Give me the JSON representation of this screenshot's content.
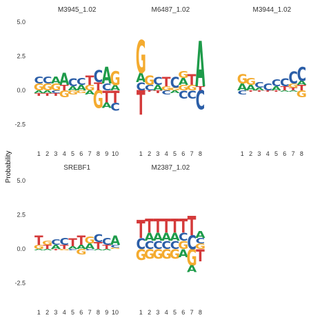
{
  "chart_data": {
    "type": "sequence-logo",
    "ylabel": "Probability",
    "colors": {
      "A": "#1e9b4a",
      "C": "#2b5ea7",
      "G": "#f4ab2f",
      "T": "#d43a3a"
    },
    "yticks": [
      -2.5,
      0.0,
      2.5,
      5.0
    ],
    "ylim": [
      -4.5,
      5.0
    ],
    "panels": [
      {
        "title": "M3945_1.02",
        "positions": [
          {
            "x": "1",
            "stack": [
              [
                "A",
                -0.2
              ],
              [
                "T",
                -0.2
              ],
              [
                "G",
                0.5
              ],
              [
                "C",
                0.5
              ]
            ]
          },
          {
            "x": "2",
            "stack": [
              [
                "A",
                -0.2
              ],
              [
                "T",
                -0.2
              ],
              [
                "G",
                0.5
              ],
              [
                "C",
                0.5
              ]
            ]
          },
          {
            "x": "3",
            "stack": [
              [
                "C",
                -0.2
              ],
              [
                "T",
                -0.2
              ],
              [
                "G",
                0.5
              ],
              [
                "A",
                0.5
              ]
            ]
          },
          {
            "x": "4",
            "stack": [
              [
                "G",
                -0.5
              ],
              [
                "T",
                0.4
              ],
              [
                "A",
                0.9
              ]
            ]
          },
          {
            "x": "5",
            "stack": [
              [
                "G",
                -0.3
              ],
              [
                "A",
                0.3
              ],
              [
                "C",
                0.6
              ]
            ]
          },
          {
            "x": "6",
            "stack": [
              [
                "G",
                -0.2
              ],
              [
                "A",
                0.4
              ],
              [
                "C",
                0.5
              ]
            ]
          },
          {
            "x": "7",
            "stack": [
              [
                "A",
                -0.3
              ],
              [
                "G",
                0.4
              ],
              [
                "T",
                0.7
              ]
            ]
          },
          {
            "x": "8",
            "stack": [
              [
                "G",
                -1.3
              ],
              [
                "T",
                0.6
              ],
              [
                "C",
                0.9
              ]
            ]
          },
          {
            "x": "9",
            "stack": [
              [
                "T",
                -0.9
              ],
              [
                "A",
                -0.4
              ],
              [
                "C",
                0.5
              ],
              [
                "A",
                1.2
              ]
            ]
          },
          {
            "x": "10",
            "stack": [
              [
                "T",
                -0.9
              ],
              [
                "C",
                -0.6
              ],
              [
                "A",
                0.4
              ],
              [
                "G",
                1.0
              ]
            ]
          }
        ]
      },
      {
        "title": "M6487_1.02",
        "positions": [
          {
            "x": "1",
            "stack": [
              [
                "T",
                -1.8
              ],
              [
                "C",
                0.6
              ],
              [
                "A",
                0.7
              ],
              [
                "G",
                2.4
              ]
            ]
          },
          {
            "x": "2",
            "stack": [
              [
                "T",
                -0.1
              ],
              [
                "C",
                0.4
              ],
              [
                "G",
                0.7
              ]
            ]
          },
          {
            "x": "3",
            "stack": [
              [
                "T",
                -0.2
              ],
              [
                "A",
                0.4
              ],
              [
                "C",
                0.6
              ]
            ]
          },
          {
            "x": "4",
            "stack": [
              [
                "C",
                -0.3
              ],
              [
                "G",
                0.3
              ],
              [
                "T",
                0.7
              ]
            ]
          },
          {
            "x": "5",
            "stack": [
              [
                "A",
                -0.2
              ],
              [
                "G",
                0.2
              ],
              [
                "C",
                0.8
              ]
            ]
          },
          {
            "x": "6",
            "stack": [
              [
                "C",
                -0.6
              ],
              [
                "G",
                0.4
              ],
              [
                "A",
                0.5
              ],
              [
                "G",
                0.5
              ]
            ]
          },
          {
            "x": "7",
            "stack": [
              [
                "C",
                -0.6
              ],
              [
                "G",
                0.4
              ],
              [
                "T",
                0.8
              ]
            ]
          },
          {
            "x": "8",
            "stack": [
              [
                "C",
                -1.4
              ],
              [
                "T",
                0.3
              ],
              [
                "A",
                3.3
              ]
            ]
          }
        ]
      },
      {
        "title": "M3944_1.02",
        "positions": [
          {
            "x": "1",
            "stack": [
              [
                "C",
                -0.3
              ],
              [
                "A",
                0.5
              ],
              [
                "G",
                0.7
              ]
            ]
          },
          {
            "x": "2",
            "stack": [
              [
                "T",
                -0.1
              ],
              [
                "A",
                0.4
              ],
              [
                "G",
                0.5
              ]
            ]
          },
          {
            "x": "3",
            "stack": [
              [
                "T",
                -0.1
              ],
              [
                "A",
                0.2
              ],
              [
                "C",
                0.4
              ]
            ]
          },
          {
            "x": "4",
            "stack": [
              [
                "T",
                -0.1
              ],
              [
                "C",
                0.5
              ]
            ]
          },
          {
            "x": "5",
            "stack": [
              [
                "T",
                -0.1
              ],
              [
                "A",
                0.3
              ],
              [
                "C",
                0.5
              ]
            ]
          },
          {
            "x": "6",
            "stack": [
              [
                "A",
                -0.1
              ],
              [
                "T",
                0.3
              ],
              [
                "C",
                0.6
              ]
            ]
          },
          {
            "x": "7",
            "stack": [
              [
                "A",
                -0.1
              ],
              [
                "T",
                0.2
              ],
              [
                "G",
                0.3
              ],
              [
                "C",
                0.9
              ]
            ]
          },
          {
            "x": "8",
            "stack": [
              [
                "G",
                -0.5
              ],
              [
                "T",
                0.4
              ],
              [
                "A",
                0.3
              ],
              [
                "C",
                1.0
              ]
            ]
          }
        ]
      },
      {
        "title": "SREBF1",
        "positions": [
          {
            "x": "1",
            "stack": [
              [
                "A",
                -0.1
              ],
              [
                "G",
                0.3
              ],
              [
                "T",
                0.7
              ]
            ]
          },
          {
            "x": "2",
            "stack": [
              [
                "A",
                -0.1
              ],
              [
                "T",
                0.3
              ],
              [
                "G",
                0.3
              ]
            ]
          },
          {
            "x": "3",
            "stack": [
              [
                "T",
                -0.1
              ],
              [
                "A",
                0.3
              ],
              [
                "C",
                0.4
              ]
            ]
          },
          {
            "x": "4",
            "stack": [
              [
                "G",
                -0.1
              ],
              [
                "T",
                0.3
              ],
              [
                "C",
                0.5
              ]
            ]
          },
          {
            "x": "5",
            "stack": [
              [
                "C",
                -0.1
              ],
              [
                "A",
                0.2
              ],
              [
                "T",
                0.6
              ]
            ]
          },
          {
            "x": "6",
            "stack": [
              [
                "G",
                -0.4
              ],
              [
                "A",
                0.3
              ],
              [
                "T",
                0.7
              ]
            ]
          },
          {
            "x": "7",
            "stack": [
              [
                "C",
                -0.1
              ],
              [
                "A",
                0.4
              ],
              [
                "G",
                0.5
              ]
            ]
          },
          {
            "x": "8",
            "stack": [
              [
                "A",
                -0.1
              ],
              [
                "T",
                0.5
              ],
              [
                "C",
                0.6
              ]
            ]
          },
          {
            "x": "9",
            "stack": [
              [
                "A",
                -0.1
              ],
              [
                "T",
                0.3
              ],
              [
                "C",
                0.5
              ]
            ]
          },
          {
            "x": "10",
            "stack": [
              [
                "G",
                0.1
              ],
              [
                "C",
                0.2
              ],
              [
                "A",
                0.7
              ]
            ]
          }
        ]
      },
      {
        "title": "M2387_1.02",
        "positions": [
          {
            "x": "1",
            "stack": [
              [
                "G",
                -0.8
              ],
              [
                "C",
                0.8
              ],
              [
                "T",
                1.3
              ]
            ]
          },
          {
            "x": "2",
            "stack": [
              [
                "G",
                -0.7
              ],
              [
                "C",
                0.6
              ],
              [
                "A",
                0.6
              ],
              [
                "T",
                1.0
              ]
            ]
          },
          {
            "x": "3",
            "stack": [
              [
                "G",
                -0.7
              ],
              [
                "C",
                0.6
              ],
              [
                "A",
                0.6
              ],
              [
                "T",
                1.0
              ]
            ]
          },
          {
            "x": "4",
            "stack": [
              [
                "G",
                -0.7
              ],
              [
                "C",
                0.6
              ],
              [
                "A",
                0.6
              ],
              [
                "T",
                1.0
              ]
            ]
          },
          {
            "x": "5",
            "stack": [
              [
                "G",
                -0.7
              ],
              [
                "C",
                0.6
              ],
              [
                "A",
                0.6
              ],
              [
                "T",
                1.0
              ]
            ]
          },
          {
            "x": "6",
            "stack": [
              [
                "A",
                -0.6
              ],
              [
                "G",
                0.6
              ],
              [
                "C",
                0.6
              ],
              [
                "T",
                1.0
              ]
            ]
          },
          {
            "x": "7",
            "stack": [
              [
                "G",
                -1.2
              ],
              [
                "A",
                -0.5
              ],
              [
                "C",
                1.0
              ],
              [
                "T",
                1.4
              ]
            ]
          },
          {
            "x": "8",
            "stack": [
              [
                "T",
                -0.9
              ],
              [
                "G",
                0.4
              ],
              [
                "C",
                0.4
              ],
              [
                "A",
                0.5
              ]
            ]
          }
        ]
      }
    ]
  }
}
